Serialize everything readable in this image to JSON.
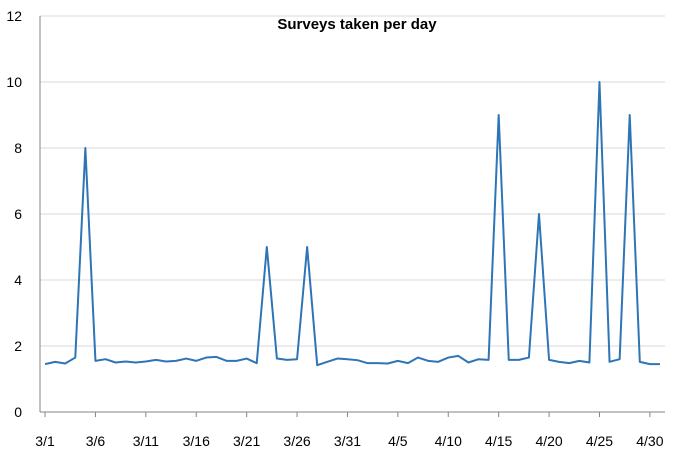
{
  "chart_data": {
    "type": "line",
    "title": "Surveys taken per day",
    "xlabel": "",
    "ylabel": "",
    "ylim": [
      0,
      12
    ],
    "yticks": [
      0,
      2,
      4,
      6,
      8,
      10,
      12
    ],
    "grid": "horizontal",
    "legend": "none",
    "x_tick_labels": [
      "3/1",
      "3/6",
      "3/11",
      "3/16",
      "3/21",
      "3/26",
      "3/31",
      "4/5",
      "4/10",
      "4/15",
      "4/20",
      "4/25",
      "4/30"
    ],
    "x": [
      "3/1",
      "3/2",
      "3/3",
      "3/4",
      "3/5",
      "3/6",
      "3/7",
      "3/8",
      "3/9",
      "3/10",
      "3/11",
      "3/12",
      "3/13",
      "3/14",
      "3/15",
      "3/16",
      "3/17",
      "3/18",
      "3/19",
      "3/20",
      "3/21",
      "3/22",
      "3/23",
      "3/24",
      "3/25",
      "3/26",
      "3/27",
      "3/28",
      "3/29",
      "3/30",
      "3/31",
      "4/1",
      "4/2",
      "4/3",
      "4/4",
      "4/5",
      "4/6",
      "4/7",
      "4/8",
      "4/9",
      "4/10",
      "4/11",
      "4/12",
      "4/13",
      "4/14",
      "4/15",
      "4/16",
      "4/17",
      "4/18",
      "4/19",
      "4/20",
      "4/21",
      "4/22",
      "4/23",
      "4/24",
      "4/25",
      "4/26",
      "4/27",
      "4/28",
      "4/29",
      "4/30",
      "5/1"
    ],
    "series": [
      {
        "color": "#2e75b6",
        "values": [
          1.45,
          1.52,
          1.47,
          1.65,
          8.0,
          1.55,
          1.6,
          1.5,
          1.53,
          1.5,
          1.53,
          1.58,
          1.53,
          1.55,
          1.62,
          1.55,
          1.65,
          1.67,
          1.55,
          1.55,
          1.62,
          1.48,
          5.0,
          1.62,
          1.58,
          1.6,
          5.0,
          1.42,
          1.52,
          1.62,
          1.6,
          1.57,
          1.48,
          1.48,
          1.47,
          1.55,
          1.48,
          1.65,
          1.55,
          1.52,
          1.65,
          1.7,
          1.5,
          1.6,
          1.58,
          9.0,
          1.58,
          1.58,
          1.65,
          6.0,
          1.58,
          1.52,
          1.48,
          1.55,
          1.5,
          10.0,
          1.52,
          1.6,
          9.0,
          1.52,
          1.45,
          1.45
        ]
      }
    ]
  }
}
